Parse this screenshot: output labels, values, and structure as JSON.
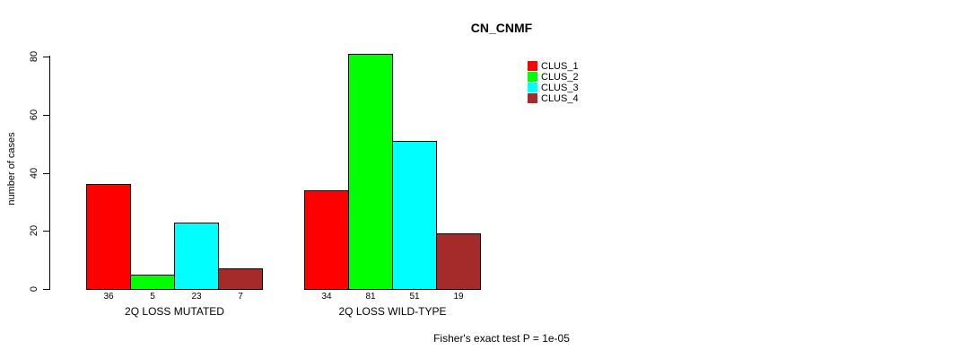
{
  "title": "CN_CNMF",
  "footnote": "Fisher's exact test P = 1e-05",
  "chart_data": {
    "type": "bar",
    "title": "CN_CNMF",
    "ylabel": "number of cases",
    "xlabel": "",
    "yticks": [
      0,
      20,
      40,
      60,
      80
    ],
    "ylim": [
      0,
      81
    ],
    "grid": false,
    "background": "#ffffff",
    "axis_color": "#000000",
    "bar_border_color": "#000000",
    "legend_position": "top-right",
    "series": [
      {
        "name": "CLUS_1",
        "color": "#ff0000"
      },
      {
        "name": "CLUS_2",
        "color": "#00ff00"
      },
      {
        "name": "CLUS_3",
        "color": "#00ffff"
      },
      {
        "name": "CLUS_4",
        "color": "#a52a2a"
      }
    ],
    "groups": [
      {
        "label": "2Q LOSS MUTATED",
        "values": [
          36,
          5,
          23,
          7
        ],
        "value_labels": [
          "36",
          "5",
          "23",
          "7"
        ]
      },
      {
        "label": "2Q LOSS WILD-TYPE",
        "values": [
          34,
          81,
          51,
          19
        ],
        "value_labels": [
          "34",
          "81",
          "51",
          "19"
        ]
      }
    ],
    "annotation": "Fisher's exact test P = 1e-05"
  }
}
